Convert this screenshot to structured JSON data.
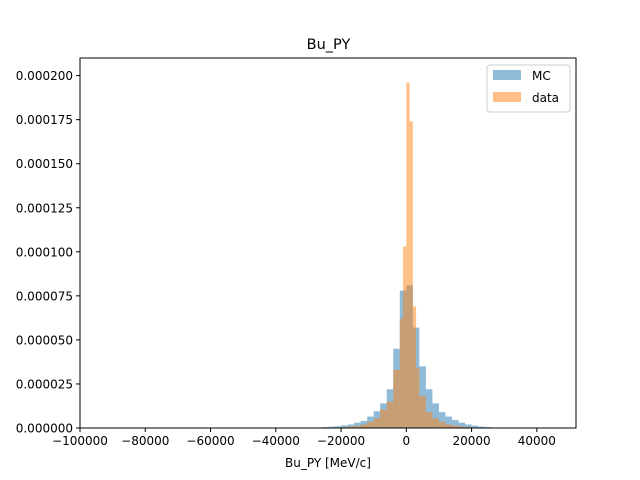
{
  "chart_data": {
    "type": "histogram",
    "title": "Bu_PY",
    "xlabel": "Bu_PY [MeV/c]",
    "ylabel": "",
    "xlim": [
      -100000,
      52000
    ],
    "ylim": [
      0,
      0.00021
    ],
    "xticks": [
      -100000,
      -80000,
      -60000,
      -40000,
      -20000,
      0,
      20000,
      40000
    ],
    "xtick_labels": [
      "−100000",
      "−80000",
      "−60000",
      "−40000",
      "−20000",
      "0",
      "20000",
      "40000"
    ],
    "yticks": [
      0,
      2.5e-05,
      5e-05,
      7.5e-05,
      0.0001,
      0.000125,
      0.00015,
      0.000175,
      0.0002
    ],
    "ytick_labels": [
      "0.000000",
      "0.000025",
      "0.000050",
      "0.000075",
      "0.000100",
      "0.000125",
      "0.000150",
      "0.000175",
      "0.000200"
    ],
    "legend_position": "top-right",
    "series": [
      {
        "name": "MC",
        "color": "#1f77b4",
        "opacity": 0.5,
        "bins": [
          [
            -26000,
            -24000,
            5e-07
          ],
          [
            -24000,
            -22000,
            7e-07
          ],
          [
            -22000,
            -20000,
            1e-06
          ],
          [
            -20000,
            -18000,
            1.5e-06
          ],
          [
            -18000,
            -16000,
            2e-06
          ],
          [
            -16000,
            -14000,
            3e-06
          ],
          [
            -14000,
            -12000,
            4e-06
          ],
          [
            -12000,
            -10000,
            6.5e-06
          ],
          [
            -10000,
            -8000,
            9.5e-06
          ],
          [
            -8000,
            -6000,
            1.4e-05
          ],
          [
            -6000,
            -4000,
            2.2e-05
          ],
          [
            -4000,
            -2000,
            4.5e-05
          ],
          [
            -2000,
            0,
            7.8e-05
          ],
          [
            0,
            2000,
            8.1e-05
          ],
          [
            2000,
            4000,
            5.7e-05
          ],
          [
            4000,
            6000,
            3.5e-05
          ],
          [
            6000,
            8000,
            2.2e-05
          ],
          [
            8000,
            10000,
            1.4e-05
          ],
          [
            10000,
            12000,
            9e-06
          ],
          [
            12000,
            14000,
            6.5e-06
          ],
          [
            14000,
            16000,
            4.5e-06
          ],
          [
            16000,
            18000,
            3e-06
          ],
          [
            18000,
            20000,
            2e-06
          ],
          [
            20000,
            22000,
            1.3e-06
          ],
          [
            22000,
            24000,
            8e-07
          ],
          [
            24000,
            26000,
            5e-07
          ]
        ]
      },
      {
        "name": "data",
        "color": "#ff7f0e",
        "opacity": 0.5,
        "bins": [
          [
            -20000,
            -18000,
            5e-07
          ],
          [
            -18000,
            -16000,
            8e-07
          ],
          [
            -16000,
            -14000,
            1.2e-06
          ],
          [
            -14000,
            -12000,
            2e-06
          ],
          [
            -12000,
            -10000,
            3.5e-06
          ],
          [
            -10000,
            -8000,
            5.5e-06
          ],
          [
            -8000,
            -6000,
            1.05e-05
          ],
          [
            -6000,
            -4000,
            1.5e-05
          ],
          [
            -4000,
            -2000,
            3.3e-05
          ],
          [
            -2000,
            -1000,
            6.2e-05
          ],
          [
            -1000,
            0,
            0.000103
          ],
          [
            0,
            1000,
            0.000196
          ],
          [
            1000,
            2000,
            0.000174
          ],
          [
            2000,
            3000,
            6.9e-05
          ],
          [
            3000,
            4000,
            3.4e-05
          ],
          [
            4000,
            6000,
            1.8e-05
          ],
          [
            6000,
            8000,
            9e-06
          ],
          [
            8000,
            10000,
            5.5e-06
          ],
          [
            10000,
            12000,
            3.5e-06
          ],
          [
            12000,
            14000,
            2e-06
          ],
          [
            14000,
            16000,
            1.3e-06
          ],
          [
            16000,
            18000,
            8e-07
          ],
          [
            18000,
            20000,
            5e-07
          ]
        ]
      }
    ]
  }
}
